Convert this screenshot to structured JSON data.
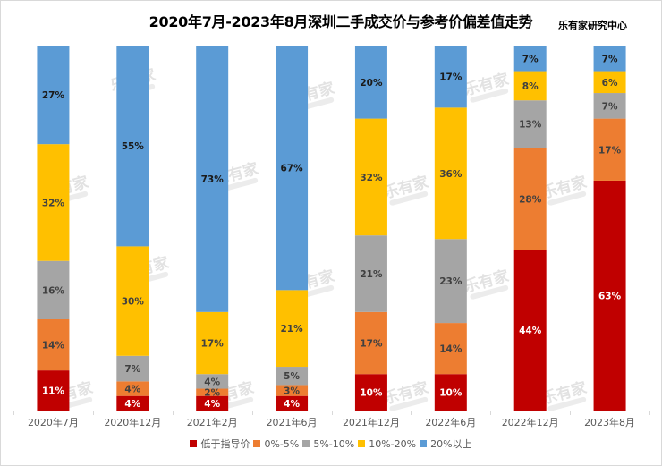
{
  "chart_data": {
    "type": "bar",
    "stacked": true,
    "title": "2020年7月-2023年8月深圳二手成交价与参考价偏差值走势",
    "source": "乐有家研究中心",
    "watermark": "乐有家",
    "categories": [
      "2020年7月",
      "2020年12月",
      "2021年2月",
      "2021年6月",
      "2021年12月",
      "2022年6月",
      "2022年12月",
      "2023年8月"
    ],
    "series": [
      {
        "name": "低于指导价",
        "color": "#c00000",
        "label_color": "#ffffff",
        "values": [
          11,
          4,
          4,
          4,
          10,
          10,
          44,
          63
        ]
      },
      {
        "name": "0%-5%",
        "color": "#ed7d31",
        "label_color": "#404040",
        "values": [
          14,
          4,
          2,
          3,
          17,
          14,
          28,
          17
        ]
      },
      {
        "name": "5%-10%",
        "color": "#a5a5a5",
        "label_color": "#404040",
        "values": [
          16,
          7,
          4,
          5,
          21,
          23,
          13,
          7
        ]
      },
      {
        "name": "10%-20%",
        "color": "#ffc000",
        "label_color": "#404040",
        "values": [
          32,
          30,
          17,
          21,
          32,
          36,
          8,
          6
        ]
      },
      {
        "name": "20%以上",
        "color": "#5b9bd5",
        "label_color": "#1a1a1a",
        "values": [
          27,
          55,
          73,
          67,
          20,
          17,
          7,
          7
        ]
      }
    ],
    "labels_shown": [
      [
        true,
        true,
        true,
        true,
        true
      ],
      [
        true,
        true,
        true,
        true,
        true
      ],
      [
        true,
        true,
        true,
        true,
        true
      ],
      [
        true,
        true,
        true,
        true,
        true
      ],
      [
        true,
        true,
        true,
        true,
        true
      ],
      [
        true,
        true,
        true,
        true,
        true
      ],
      [
        true,
        true,
        true,
        true,
        true
      ],
      [
        true,
        true,
        true,
        true,
        true
      ]
    ],
    "ylim": [
      0,
      100
    ],
    "value_suffix": "%",
    "legend_position": "bottom",
    "grid": false
  }
}
